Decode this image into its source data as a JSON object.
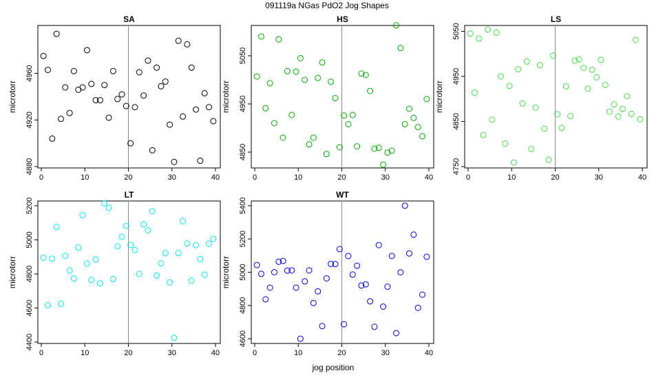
{
  "figure": {
    "title": "091119a   NGas PdO2 Jog Shapes",
    "xlabel": "jog position"
  },
  "chart_data": [
    {
      "type": "scatter",
      "title": "SA",
      "ylabel": "microtorr",
      "xlim": [
        0,
        40
      ],
      "ylim": [
        4880,
        5000
      ],
      "xticks": [
        0,
        10,
        20,
        30,
        40
      ],
      "yticks": [
        4880,
        4920,
        4960
      ],
      "vline": 20,
      "color": "#000000",
      "x": [
        0.5,
        1.5,
        2.5,
        3.5,
        4.5,
        5.5,
        6.5,
        7.5,
        8.5,
        9.5,
        10.5,
        11.5,
        12.5,
        13.5,
        14.5,
        15.5,
        16.5,
        17.5,
        18.5,
        19.5,
        20.5,
        21.5,
        22.5,
        23.5,
        24.5,
        25.5,
        26.5,
        27.5,
        28.5,
        29.5,
        30.5,
        31.5,
        32.5,
        33.5,
        34.5,
        35.5,
        36.5,
        37.5,
        38.5,
        39.5
      ],
      "y": [
        4975,
        4963,
        4904,
        4994,
        4921,
        4948,
        4926,
        4962,
        4946,
        4948,
        4980,
        4951,
        4937,
        4937,
        4950,
        4922,
        4962,
        4938,
        4942,
        4932,
        4900,
        4931,
        4961,
        4941,
        4971,
        4894,
        4965,
        4949,
        4953,
        4916,
        4884,
        4988,
        4923,
        4985,
        4965,
        4929,
        4885,
        4943,
        4931,
        4919
      ]
    },
    {
      "type": "scatter",
      "title": "HS",
      "ylabel": "microtorr",
      "xlim": [
        0,
        40
      ],
      "ylim": [
        4820,
        5110
      ],
      "xticks": [
        0,
        10,
        20,
        30,
        40
      ],
      "yticks": [
        4850,
        4950,
        5050
      ],
      "vline": 20,
      "color": "#00aa00",
      "x": [
        0.5,
        1.5,
        2.5,
        3.5,
        4.5,
        5.5,
        6.5,
        7.5,
        8.5,
        9.5,
        10.5,
        11.5,
        12.5,
        13.5,
        14.5,
        15.5,
        16.5,
        17.5,
        18.5,
        19.5,
        20.5,
        21.5,
        22.5,
        23.5,
        24.5,
        25.5,
        26.5,
        27.5,
        28.5,
        29.5,
        30.5,
        31.5,
        32.5,
        33.5,
        34.5,
        35.5,
        36.5,
        37.5,
        38.5,
        39.5
      ],
      "y": [
        5007,
        5090,
        4941,
        4993,
        4910,
        5084,
        4880,
        5018,
        4927,
        5017,
        5045,
        5000,
        4866,
        4880,
        5004,
        5036,
        4846,
        4996,
        4962,
        4860,
        4926,
        4908,
        4927,
        4862,
        5013,
        5010,
        4977,
        4857,
        4859,
        4824,
        4849,
        4853,
        5113,
        5066,
        4908,
        4940,
        4921,
        4902,
        4883,
        4960
      ]
    },
    {
      "type": "scatter",
      "title": "LS",
      "ylabel": "microtorr",
      "xlim": [
        0,
        40
      ],
      "ylim": [
        4750,
        5060
      ],
      "xticks": [
        0,
        10,
        20,
        30,
        40
      ],
      "yticks": [
        4750,
        4850,
        4950,
        5050
      ],
      "vline": 20,
      "color": "#44dd44",
      "x": [
        0.5,
        1.5,
        2.5,
        3.5,
        4.5,
        5.5,
        6.5,
        7.5,
        8.5,
        9.5,
        10.5,
        11.5,
        12.5,
        13.5,
        14.5,
        15.5,
        16.5,
        17.5,
        18.5,
        19.5,
        20.5,
        21.5,
        22.5,
        23.5,
        24.5,
        25.5,
        26.5,
        27.5,
        28.5,
        29.5,
        30.5,
        31.5,
        32.5,
        33.5,
        34.5,
        35.5,
        36.5,
        37.5,
        38.5,
        39.5
      ],
      "y": [
        5045,
        4914,
        5034,
        4820,
        5054,
        4854,
        5047,
        4950,
        4801,
        4929,
        4759,
        4966,
        4890,
        4983,
        4789,
        4881,
        4975,
        4834,
        4765,
        4996,
        4866,
        4836,
        4928,
        4862,
        4985,
        4988,
        4969,
        4923,
        4965,
        4948,
        4987,
        4931,
        4872,
        4888,
        4861,
        4878,
        4906,
        4867,
        5031,
        4855
      ]
    },
    {
      "type": "scatter",
      "title": "LT",
      "ylabel": "microtorr",
      "xlim": [
        0,
        40
      ],
      "ylim": [
        4400,
        5220
      ],
      "xticks": [
        0,
        10,
        20,
        30,
        40
      ],
      "yticks": [
        4400,
        4600,
        4800,
        5000,
        5200
      ],
      "vline": 20,
      "color": "#00e6e6",
      "x": [
        0.5,
        1.5,
        2.5,
        3.5,
        4.5,
        5.5,
        6.5,
        7.5,
        8.5,
        9.5,
        10.5,
        11.5,
        12.5,
        13.5,
        14.5,
        15.5,
        16.5,
        17.5,
        18.5,
        19.5,
        20.5,
        21.5,
        22.5,
        23.5,
        24.5,
        25.5,
        26.5,
        27.5,
        28.5,
        29.5,
        30.5,
        31.5,
        32.5,
        33.5,
        34.5,
        35.5,
        36.5,
        37.5,
        38.5,
        39.5
      ],
      "y": [
        4895,
        4617,
        4890,
        5076,
        4625,
        4906,
        4820,
        4773,
        4955,
        5145,
        4860,
        4765,
        4885,
        4745,
        5214,
        5188,
        4770,
        4962,
        5018,
        5082,
        4970,
        4940,
        4800,
        5090,
        5056,
        5168,
        4790,
        4862,
        4922,
        4750,
        4425,
        4922,
        5110,
        4979,
        4761,
        4969,
        4887,
        4795,
        4978,
        5006
      ]
    },
    {
      "type": "scatter",
      "title": "WT",
      "ylabel": "microtorr",
      "xlim": [
        0,
        40
      ],
      "ylim": [
        4580,
        5420
      ],
      "xticks": [
        0,
        10,
        20,
        30,
        40
      ],
      "yticks": [
        4600,
        4800,
        5000,
        5200,
        5400
      ],
      "vline": 20,
      "color": "#0000dd",
      "x": [
        0.5,
        1.5,
        2.5,
        3.5,
        4.5,
        5.5,
        6.5,
        7.5,
        8.5,
        9.5,
        10.5,
        11.5,
        12.5,
        13.5,
        14.5,
        15.5,
        16.5,
        17.5,
        18.5,
        19.5,
        20.5,
        21.5,
        22.5,
        23.5,
        24.5,
        25.5,
        26.5,
        27.5,
        28.5,
        29.5,
        30.5,
        31.5,
        32.5,
        33.5,
        34.5,
        35.5,
        36.5,
        37.5,
        38.5,
        39.5
      ],
      "y": [
        5043,
        4990,
        4837,
        4907,
        5000,
        5063,
        5068,
        5010,
        5011,
        4907,
        4600,
        4945,
        5011,
        4815,
        4885,
        4676,
        4963,
        5050,
        5049,
        5139,
        4687,
        5097,
        4986,
        5039,
        4920,
        4927,
        4825,
        4672,
        5163,
        4793,
        4913,
        5098,
        4634,
        4999,
        5400,
        5113,
        5226,
        4786,
        4865,
        5093
      ]
    }
  ]
}
